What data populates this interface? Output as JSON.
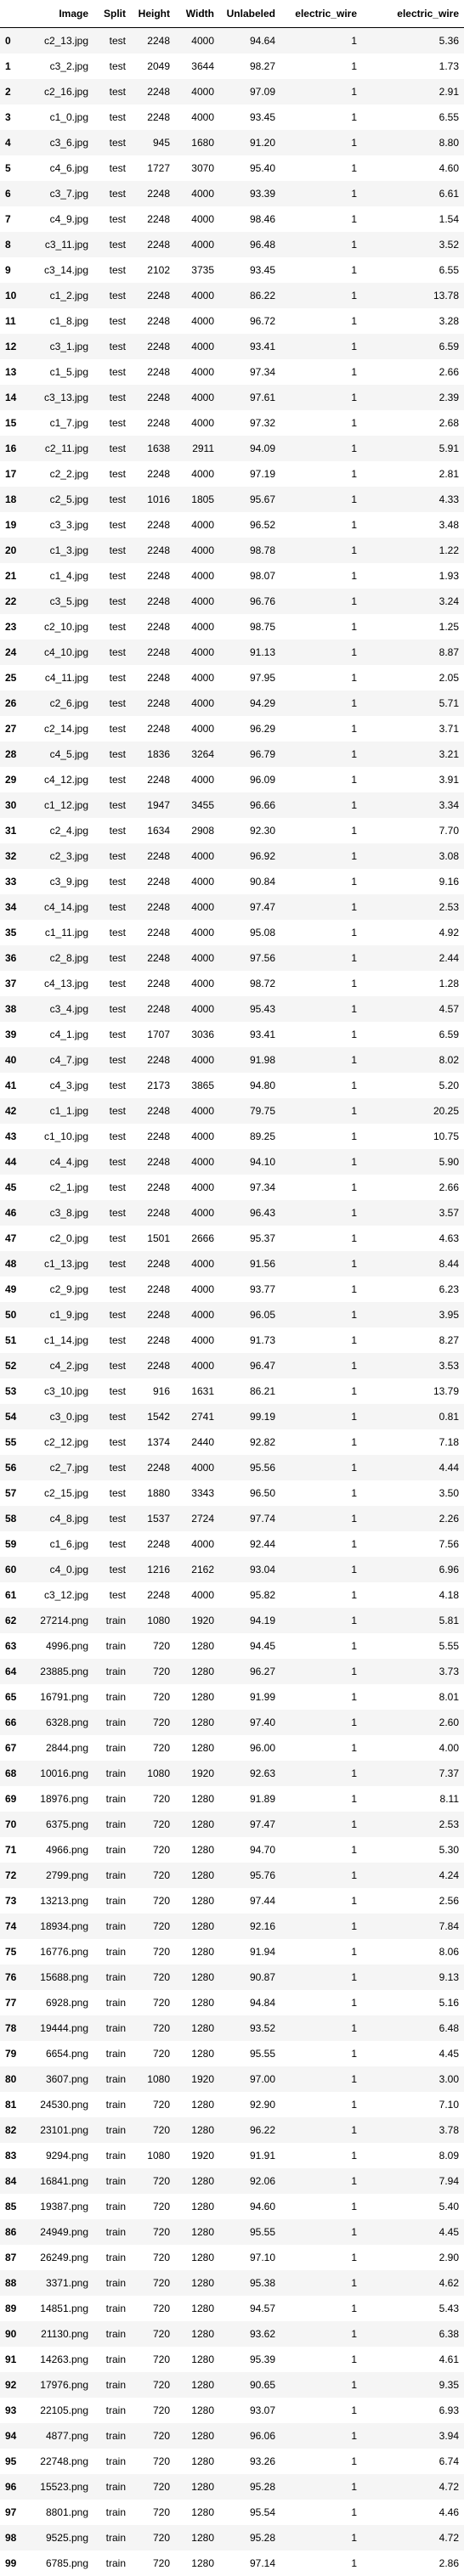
{
  "table": {
    "columns": [
      "",
      "Image",
      "Split",
      "Height",
      "Width",
      "Unlabeled",
      "electric_wire",
      "electric_wire"
    ],
    "rows": [
      [
        "0",
        "c2_13.jpg",
        "test",
        "2248",
        "4000",
        "94.64",
        "1",
        "5.36"
      ],
      [
        "1",
        "c3_2.jpg",
        "test",
        "2049",
        "3644",
        "98.27",
        "1",
        "1.73"
      ],
      [
        "2",
        "c2_16.jpg",
        "test",
        "2248",
        "4000",
        "97.09",
        "1",
        "2.91"
      ],
      [
        "3",
        "c1_0.jpg",
        "test",
        "2248",
        "4000",
        "93.45",
        "1",
        "6.55"
      ],
      [
        "4",
        "c3_6.jpg",
        "test",
        "945",
        "1680",
        "91.20",
        "1",
        "8.80"
      ],
      [
        "5",
        "c4_6.jpg",
        "test",
        "1727",
        "3070",
        "95.40",
        "1",
        "4.60"
      ],
      [
        "6",
        "c3_7.jpg",
        "test",
        "2248",
        "4000",
        "93.39",
        "1",
        "6.61"
      ],
      [
        "7",
        "c4_9.jpg",
        "test",
        "2248",
        "4000",
        "98.46",
        "1",
        "1.54"
      ],
      [
        "8",
        "c3_11.jpg",
        "test",
        "2248",
        "4000",
        "96.48",
        "1",
        "3.52"
      ],
      [
        "9",
        "c3_14.jpg",
        "test",
        "2102",
        "3735",
        "93.45",
        "1",
        "6.55"
      ],
      [
        "10",
        "c1_2.jpg",
        "test",
        "2248",
        "4000",
        "86.22",
        "1",
        "13.78"
      ],
      [
        "11",
        "c1_8.jpg",
        "test",
        "2248",
        "4000",
        "96.72",
        "1",
        "3.28"
      ],
      [
        "12",
        "c3_1.jpg",
        "test",
        "2248",
        "4000",
        "93.41",
        "1",
        "6.59"
      ],
      [
        "13",
        "c1_5.jpg",
        "test",
        "2248",
        "4000",
        "97.34",
        "1",
        "2.66"
      ],
      [
        "14",
        "c3_13.jpg",
        "test",
        "2248",
        "4000",
        "97.61",
        "1",
        "2.39"
      ],
      [
        "15",
        "c1_7.jpg",
        "test",
        "2248",
        "4000",
        "97.32",
        "1",
        "2.68"
      ],
      [
        "16",
        "c2_11.jpg",
        "test",
        "1638",
        "2911",
        "94.09",
        "1",
        "5.91"
      ],
      [
        "17",
        "c2_2.jpg",
        "test",
        "2248",
        "4000",
        "97.19",
        "1",
        "2.81"
      ],
      [
        "18",
        "c2_5.jpg",
        "test",
        "1016",
        "1805",
        "95.67",
        "1",
        "4.33"
      ],
      [
        "19",
        "c3_3.jpg",
        "test",
        "2248",
        "4000",
        "96.52",
        "1",
        "3.48"
      ],
      [
        "20",
        "c1_3.jpg",
        "test",
        "2248",
        "4000",
        "98.78",
        "1",
        "1.22"
      ],
      [
        "21",
        "c1_4.jpg",
        "test",
        "2248",
        "4000",
        "98.07",
        "1",
        "1.93"
      ],
      [
        "22",
        "c3_5.jpg",
        "test",
        "2248",
        "4000",
        "96.76",
        "1",
        "3.24"
      ],
      [
        "23",
        "c2_10.jpg",
        "test",
        "2248",
        "4000",
        "98.75",
        "1",
        "1.25"
      ],
      [
        "24",
        "c4_10.jpg",
        "test",
        "2248",
        "4000",
        "91.13",
        "1",
        "8.87"
      ],
      [
        "25",
        "c4_11.jpg",
        "test",
        "2248",
        "4000",
        "97.95",
        "1",
        "2.05"
      ],
      [
        "26",
        "c2_6.jpg",
        "test",
        "2248",
        "4000",
        "94.29",
        "1",
        "5.71"
      ],
      [
        "27",
        "c2_14.jpg",
        "test",
        "2248",
        "4000",
        "96.29",
        "1",
        "3.71"
      ],
      [
        "28",
        "c4_5.jpg",
        "test",
        "1836",
        "3264",
        "96.79",
        "1",
        "3.21"
      ],
      [
        "29",
        "c4_12.jpg",
        "test",
        "2248",
        "4000",
        "96.09",
        "1",
        "3.91"
      ],
      [
        "30",
        "c1_12.jpg",
        "test",
        "1947",
        "3455",
        "96.66",
        "1",
        "3.34"
      ],
      [
        "31",
        "c2_4.jpg",
        "test",
        "1634",
        "2908",
        "92.30",
        "1",
        "7.70"
      ],
      [
        "32",
        "c2_3.jpg",
        "test",
        "2248",
        "4000",
        "96.92",
        "1",
        "3.08"
      ],
      [
        "33",
        "c3_9.jpg",
        "test",
        "2248",
        "4000",
        "90.84",
        "1",
        "9.16"
      ],
      [
        "34",
        "c4_14.jpg",
        "test",
        "2248",
        "4000",
        "97.47",
        "1",
        "2.53"
      ],
      [
        "35",
        "c1_11.jpg",
        "test",
        "2248",
        "4000",
        "95.08",
        "1",
        "4.92"
      ],
      [
        "36",
        "c2_8.jpg",
        "test",
        "2248",
        "4000",
        "97.56",
        "1",
        "2.44"
      ],
      [
        "37",
        "c4_13.jpg",
        "test",
        "2248",
        "4000",
        "98.72",
        "1",
        "1.28"
      ],
      [
        "38",
        "c3_4.jpg",
        "test",
        "2248",
        "4000",
        "95.43",
        "1",
        "4.57"
      ],
      [
        "39",
        "c4_1.jpg",
        "test",
        "1707",
        "3036",
        "93.41",
        "1",
        "6.59"
      ],
      [
        "40",
        "c4_7.jpg",
        "test",
        "2248",
        "4000",
        "91.98",
        "1",
        "8.02"
      ],
      [
        "41",
        "c4_3.jpg",
        "test",
        "2173",
        "3865",
        "94.80",
        "1",
        "5.20"
      ],
      [
        "42",
        "c1_1.jpg",
        "test",
        "2248",
        "4000",
        "79.75",
        "1",
        "20.25"
      ],
      [
        "43",
        "c1_10.jpg",
        "test",
        "2248",
        "4000",
        "89.25",
        "1",
        "10.75"
      ],
      [
        "44",
        "c4_4.jpg",
        "test",
        "2248",
        "4000",
        "94.10",
        "1",
        "5.90"
      ],
      [
        "45",
        "c2_1.jpg",
        "test",
        "2248",
        "4000",
        "97.34",
        "1",
        "2.66"
      ],
      [
        "46",
        "c3_8.jpg",
        "test",
        "2248",
        "4000",
        "96.43",
        "1",
        "3.57"
      ],
      [
        "47",
        "c2_0.jpg",
        "test",
        "1501",
        "2666",
        "95.37",
        "1",
        "4.63"
      ],
      [
        "48",
        "c1_13.jpg",
        "test",
        "2248",
        "4000",
        "91.56",
        "1",
        "8.44"
      ],
      [
        "49",
        "c2_9.jpg",
        "test",
        "2248",
        "4000",
        "93.77",
        "1",
        "6.23"
      ],
      [
        "50",
        "c1_9.jpg",
        "test",
        "2248",
        "4000",
        "96.05",
        "1",
        "3.95"
      ],
      [
        "51",
        "c1_14.jpg",
        "test",
        "2248",
        "4000",
        "91.73",
        "1",
        "8.27"
      ],
      [
        "52",
        "c4_2.jpg",
        "test",
        "2248",
        "4000",
        "96.47",
        "1",
        "3.53"
      ],
      [
        "53",
        "c3_10.jpg",
        "test",
        "916",
        "1631",
        "86.21",
        "1",
        "13.79"
      ],
      [
        "54",
        "c3_0.jpg",
        "test",
        "1542",
        "2741",
        "99.19",
        "1",
        "0.81"
      ],
      [
        "55",
        "c2_12.jpg",
        "test",
        "1374",
        "2440",
        "92.82",
        "1",
        "7.18"
      ],
      [
        "56",
        "c2_7.jpg",
        "test",
        "2248",
        "4000",
        "95.56",
        "1",
        "4.44"
      ],
      [
        "57",
        "c2_15.jpg",
        "test",
        "1880",
        "3343",
        "96.50",
        "1",
        "3.50"
      ],
      [
        "58",
        "c4_8.jpg",
        "test",
        "1537",
        "2724",
        "97.74",
        "1",
        "2.26"
      ],
      [
        "59",
        "c1_6.jpg",
        "test",
        "2248",
        "4000",
        "92.44",
        "1",
        "7.56"
      ],
      [
        "60",
        "c4_0.jpg",
        "test",
        "1216",
        "2162",
        "93.04",
        "1",
        "6.96"
      ],
      [
        "61",
        "c3_12.jpg",
        "test",
        "2248",
        "4000",
        "95.82",
        "1",
        "4.18"
      ],
      [
        "62",
        "27214.png",
        "train",
        "1080",
        "1920",
        "94.19",
        "1",
        "5.81"
      ],
      [
        "63",
        "4996.png",
        "train",
        "720",
        "1280",
        "94.45",
        "1",
        "5.55"
      ],
      [
        "64",
        "23885.png",
        "train",
        "720",
        "1280",
        "96.27",
        "1",
        "3.73"
      ],
      [
        "65",
        "16791.png",
        "train",
        "720",
        "1280",
        "91.99",
        "1",
        "8.01"
      ],
      [
        "66",
        "6328.png",
        "train",
        "720",
        "1280",
        "97.40",
        "1",
        "2.60"
      ],
      [
        "67",
        "2844.png",
        "train",
        "720",
        "1280",
        "96.00",
        "1",
        "4.00"
      ],
      [
        "68",
        "10016.png",
        "train",
        "1080",
        "1920",
        "92.63",
        "1",
        "7.37"
      ],
      [
        "69",
        "18976.png",
        "train",
        "720",
        "1280",
        "91.89",
        "1",
        "8.11"
      ],
      [
        "70",
        "6375.png",
        "train",
        "720",
        "1280",
        "97.47",
        "1",
        "2.53"
      ],
      [
        "71",
        "4966.png",
        "train",
        "720",
        "1280",
        "94.70",
        "1",
        "5.30"
      ],
      [
        "72",
        "2799.png",
        "train",
        "720",
        "1280",
        "95.76",
        "1",
        "4.24"
      ],
      [
        "73",
        "13213.png",
        "train",
        "720",
        "1280",
        "97.44",
        "1",
        "2.56"
      ],
      [
        "74",
        "18934.png",
        "train",
        "720",
        "1280",
        "92.16",
        "1",
        "7.84"
      ],
      [
        "75",
        "16776.png",
        "train",
        "720",
        "1280",
        "91.94",
        "1",
        "8.06"
      ],
      [
        "76",
        "15688.png",
        "train",
        "720",
        "1280",
        "90.87",
        "1",
        "9.13"
      ],
      [
        "77",
        "6928.png",
        "train",
        "720",
        "1280",
        "94.84",
        "1",
        "5.16"
      ],
      [
        "78",
        "19444.png",
        "train",
        "720",
        "1280",
        "93.52",
        "1",
        "6.48"
      ],
      [
        "79",
        "6654.png",
        "train",
        "720",
        "1280",
        "95.55",
        "1",
        "4.45"
      ],
      [
        "80",
        "3607.png",
        "train",
        "1080",
        "1920",
        "97.00",
        "1",
        "3.00"
      ],
      [
        "81",
        "24530.png",
        "train",
        "720",
        "1280",
        "92.90",
        "1",
        "7.10"
      ],
      [
        "82",
        "23101.png",
        "train",
        "720",
        "1280",
        "96.22",
        "1",
        "3.78"
      ],
      [
        "83",
        "9294.png",
        "train",
        "1080",
        "1920",
        "91.91",
        "1",
        "8.09"
      ],
      [
        "84",
        "16841.png",
        "train",
        "720",
        "1280",
        "92.06",
        "1",
        "7.94"
      ],
      [
        "85",
        "19387.png",
        "train",
        "720",
        "1280",
        "94.60",
        "1",
        "5.40"
      ],
      [
        "86",
        "24949.png",
        "train",
        "720",
        "1280",
        "95.55",
        "1",
        "4.45"
      ],
      [
        "87",
        "26249.png",
        "train",
        "720",
        "1280",
        "97.10",
        "1",
        "2.90"
      ],
      [
        "88",
        "3371.png",
        "train",
        "720",
        "1280",
        "95.38",
        "1",
        "4.62"
      ],
      [
        "89",
        "14851.png",
        "train",
        "720",
        "1280",
        "94.57",
        "1",
        "5.43"
      ],
      [
        "90",
        "21130.png",
        "train",
        "720",
        "1280",
        "93.62",
        "1",
        "6.38"
      ],
      [
        "91",
        "14263.png",
        "train",
        "720",
        "1280",
        "95.39",
        "1",
        "4.61"
      ],
      [
        "92",
        "17976.png",
        "train",
        "720",
        "1280",
        "90.65",
        "1",
        "9.35"
      ],
      [
        "93",
        "22105.png",
        "train",
        "720",
        "1280",
        "93.07",
        "1",
        "6.93"
      ],
      [
        "94",
        "4877.png",
        "train",
        "720",
        "1280",
        "96.06",
        "1",
        "3.94"
      ],
      [
        "95",
        "22748.png",
        "train",
        "720",
        "1280",
        "93.26",
        "1",
        "6.74"
      ],
      [
        "96",
        "15523.png",
        "train",
        "720",
        "1280",
        "95.28",
        "1",
        "4.72"
      ],
      [
        "97",
        "8801.png",
        "train",
        "720",
        "1280",
        "95.54",
        "1",
        "4.46"
      ],
      [
        "98",
        "9525.png",
        "train",
        "720",
        "1280",
        "95.28",
        "1",
        "4.72"
      ],
      [
        "99",
        "6785.png",
        "train",
        "720",
        "1280",
        "97.14",
        "1",
        "2.86"
      ]
    ]
  }
}
